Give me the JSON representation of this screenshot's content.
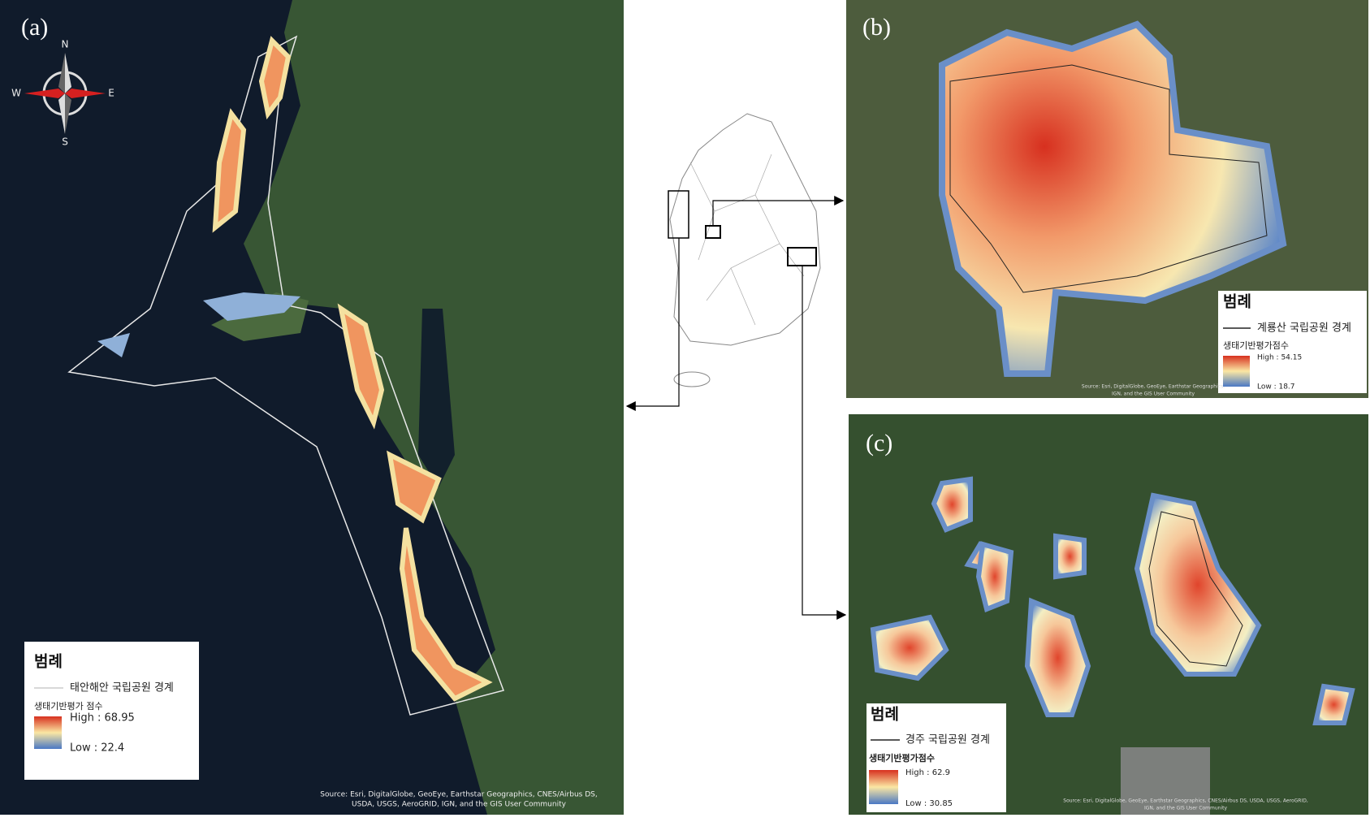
{
  "panels": {
    "a": {
      "label": "(a)",
      "compass": {
        "n": "N",
        "s": "S",
        "e": "E",
        "w": "W"
      },
      "legend": {
        "title": "범례",
        "boundary": "태안해안 국립공원 경계",
        "score_title": "생태기반평가 점수",
        "high": "High : 68.95",
        "low": "Low : 22.4"
      },
      "source": [
        "Source: Esri, DigitalGlobe, GeoEye, Earthstar Geographics, CNES/Airbus DS,",
        "USDA, USGS, AeroGRID, IGN, and the GIS User Community"
      ]
    },
    "b": {
      "label": "(b)",
      "legend": {
        "title": "범례",
        "boundary": "계룡산 국립공원 경계",
        "score_title": "생태기반평가점수",
        "high": "High : 54.15",
        "low": "Low : 18.7"
      },
      "source": [
        "Source: Esri, DigitalGlobe, GeoEye, Earthstar Geographics,",
        "IGN, and the GIS User Community"
      ]
    },
    "c": {
      "label": "(c)",
      "legend": {
        "title": "범례",
        "boundary": "경주 국립공원 경계",
        "score_title": "생태기반평가점수",
        "high": "High : 62.9",
        "low": "Low : 30.85"
      },
      "source": [
        "Source: Esri, DigitalGlobe, GeoEye, Earthstar Geographics, CNES/Airbus DS, USDA, USGS, AeroGRID,",
        "IGN, and the GIS User Community"
      ]
    }
  }
}
